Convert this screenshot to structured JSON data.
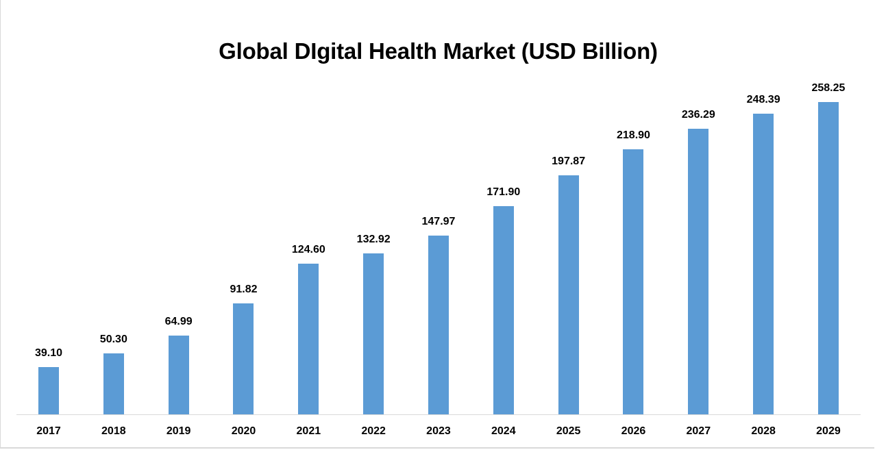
{
  "chart_data": {
    "type": "bar",
    "title": "Global DIgital Health Market (USD Billion)",
    "xlabel": "",
    "ylabel": "",
    "categories": [
      "2017",
      "2018",
      "2019",
      "2020",
      "2021",
      "2022",
      "2023",
      "2024",
      "2025",
      "2026",
      "2027",
      "2028",
      "2029"
    ],
    "values": [
      39.1,
      50.3,
      64.99,
      91.82,
      124.6,
      132.92,
      147.97,
      171.9,
      197.87,
      218.9,
      236.29,
      248.39,
      258.25
    ],
    "value_labels": [
      "39.10",
      "50.30",
      "64.99",
      "91.82",
      "124.60",
      "132.92",
      "147.97",
      "171.90",
      "197.87",
      "218.90",
      "236.29",
      "248.39",
      "258.25"
    ],
    "ylim": [
      0,
      260
    ],
    "grid": false,
    "legend": null,
    "data_labels": true,
    "bar_color": "#5b9bd5"
  }
}
